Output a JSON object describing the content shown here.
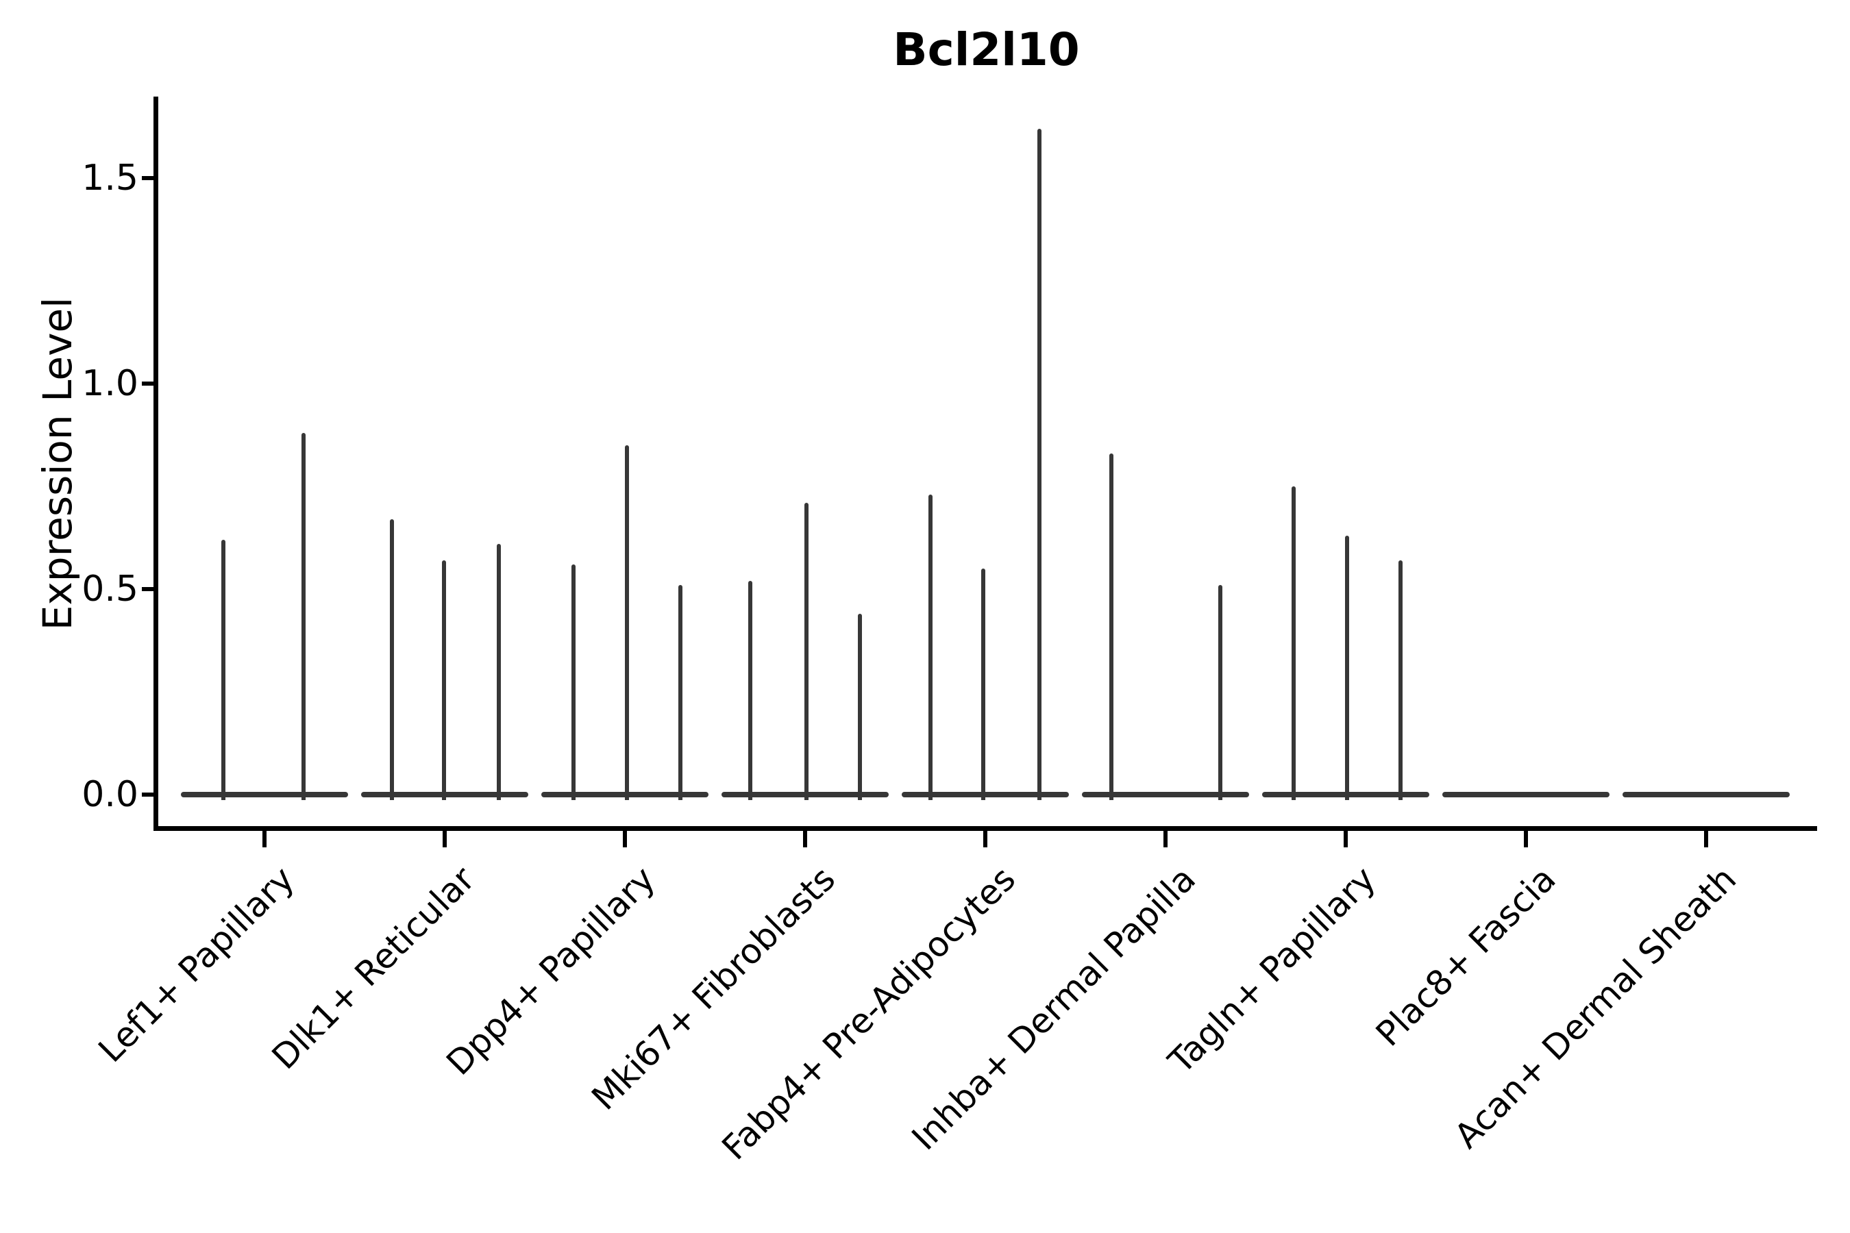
{
  "chart_data": {
    "type": "violin",
    "title": "Bcl2l10",
    "xlabel": "",
    "ylabel": "Expression Level",
    "ylim": [
      -0.083,
      1.7
    ],
    "yticks": [
      1.5,
      1.0,
      0.5,
      0.0
    ],
    "ytick_labels": [
      "1.5",
      "1.0",
      "0.5",
      "0.0"
    ],
    "grid": false,
    "legend": "none",
    "x_tick_rotation": 45,
    "categories": [
      "Lef1+ Papillary",
      "Dlk1+ Reticular",
      "Dpp4+ Papillary",
      "Mki67+ Fibroblasts",
      "Fabp4+ Pre-Adipocytes",
      "Inhba+ Dermal Papilla",
      "Tagln+ Papillary",
      "Plac8+ Fascia",
      "Acan+ Dermal Sheath"
    ],
    "baseline_value": 0.0,
    "violins": [
      {
        "category": "Lef1+ Papillary",
        "spikes": [
          {
            "x_offset": -60,
            "max": 0.62
          },
          {
            "x_offset": 57,
            "max": 0.88
          }
        ]
      },
      {
        "category": "Dlk1+ Reticular",
        "spikes": [
          {
            "x_offset": -77,
            "max": 0.67
          },
          {
            "x_offset": -1,
            "max": 0.57
          },
          {
            "x_offset": 79,
            "max": 0.61
          }
        ]
      },
      {
        "category": "Dpp4+ Papillary",
        "spikes": [
          {
            "x_offset": -75,
            "max": 0.56
          },
          {
            "x_offset": 3,
            "max": 0.85
          },
          {
            "x_offset": 81,
            "max": 0.51
          }
        ]
      },
      {
        "category": "Mki67+ Fibroblasts",
        "spikes": [
          {
            "x_offset": -80,
            "max": 0.52
          },
          {
            "x_offset": 2,
            "max": 0.71
          },
          {
            "x_offset": 80,
            "max": 0.44
          }
        ]
      },
      {
        "category": "Fabp4+ Pre-Adipocytes",
        "spikes": [
          {
            "x_offset": -80,
            "max": 0.73
          },
          {
            "x_offset": -3,
            "max": 0.55
          },
          {
            "x_offset": 79,
            "max": 1.62
          }
        ]
      },
      {
        "category": "Inhba+ Dermal Papilla",
        "spikes": [
          {
            "x_offset": -79,
            "max": 0.83
          },
          {
            "x_offset": 80,
            "max": 0.51
          }
        ]
      },
      {
        "category": "Tagln+ Papillary",
        "spikes": [
          {
            "x_offset": -76,
            "max": 0.75
          },
          {
            "x_offset": 2,
            "max": 0.63
          },
          {
            "x_offset": 80,
            "max": 0.57
          }
        ]
      },
      {
        "category": "Plac8+ Fascia",
        "spikes": []
      },
      {
        "category": "Acan+ Dermal Sheath",
        "spikes": []
      }
    ],
    "colors": {
      "violin": "#373737",
      "axis": "#000000",
      "background": "#ffffff"
    }
  }
}
